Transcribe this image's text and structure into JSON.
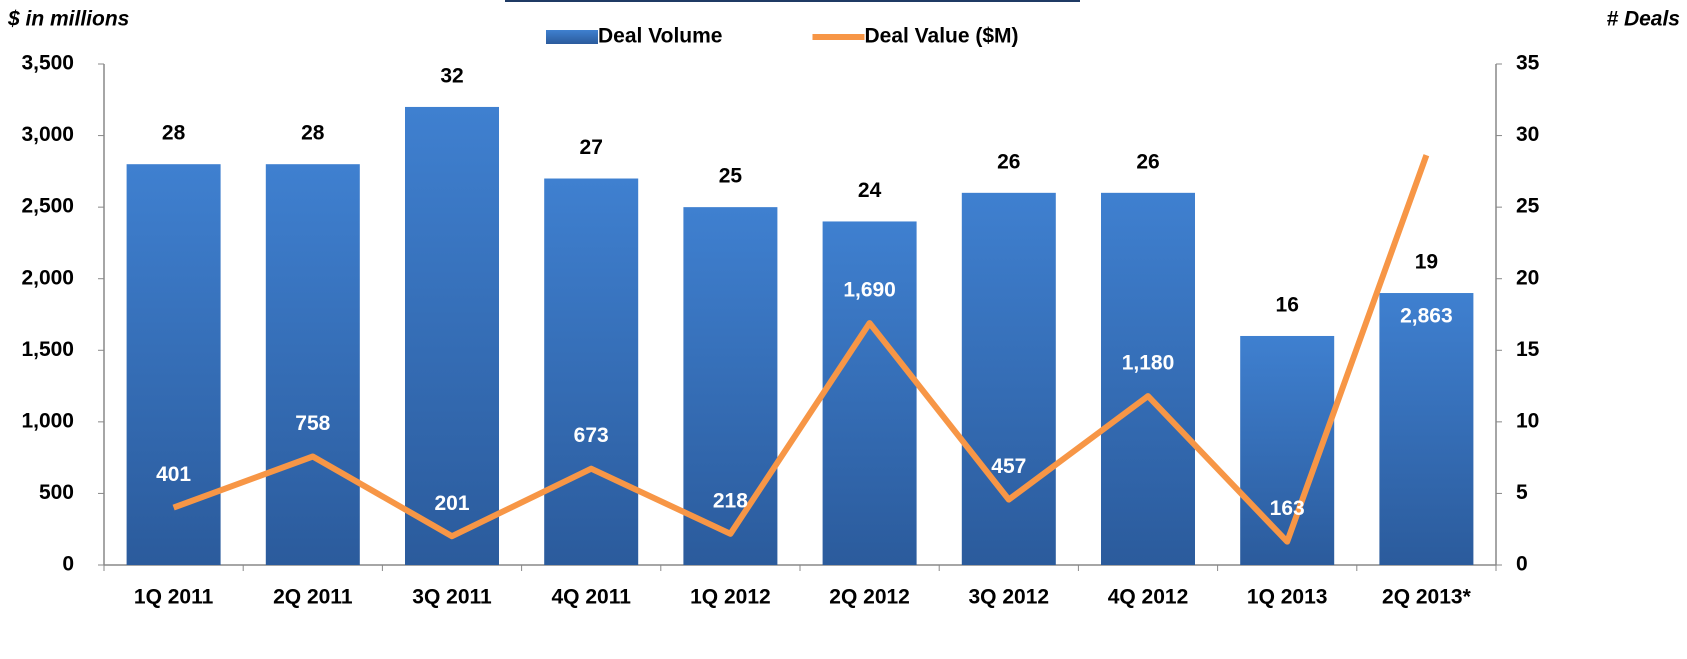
{
  "chart_data": {
    "type": "bar",
    "y_label": "$ in millions",
    "y2_label": "# Deals",
    "categories": [
      "1Q 2011",
      "2Q 2011",
      "3Q 2011",
      "4Q 2011",
      "1Q 2012",
      "2Q 2012",
      "3Q 2012",
      "4Q 2012",
      "1Q 2013",
      "2Q 2013*"
    ],
    "series": [
      {
        "name": "Deal Volume",
        "type": "bar",
        "axis": "y2",
        "color": "#3a78c8",
        "values": [
          28,
          28,
          32,
          27,
          25,
          24,
          26,
          26,
          16,
          19
        ]
      },
      {
        "name": "Deal Value ($M)",
        "type": "line",
        "axis": "y",
        "color": "#f79646",
        "values": [
          401,
          758,
          201,
          673,
          218,
          1690,
          457,
          1180,
          163,
          2863
        ],
        "value_labels": [
          "401",
          "758",
          "201",
          "673",
          "218",
          "1,690",
          "457",
          "1,180",
          "163",
          "2,863"
        ]
      }
    ],
    "ylim": [
      0,
      3500
    ],
    "yticks": [
      0,
      500,
      {
        "value": 1000,
        "label": "1,000"
      },
      {
        "value": 1500,
        "label": "1,500"
      },
      {
        "value": 2000,
        "label": "2,000"
      },
      {
        "value": 2500,
        "label": "2,500"
      },
      {
        "value": 3000,
        "label": "3,000"
      },
      {
        "value": 3500,
        "label": "3,500"
      }
    ],
    "y2lim": [
      0,
      35
    ],
    "y2ticks": [
      0,
      5,
      10,
      15,
      20,
      25,
      30,
      35
    ],
    "legend": "top"
  }
}
